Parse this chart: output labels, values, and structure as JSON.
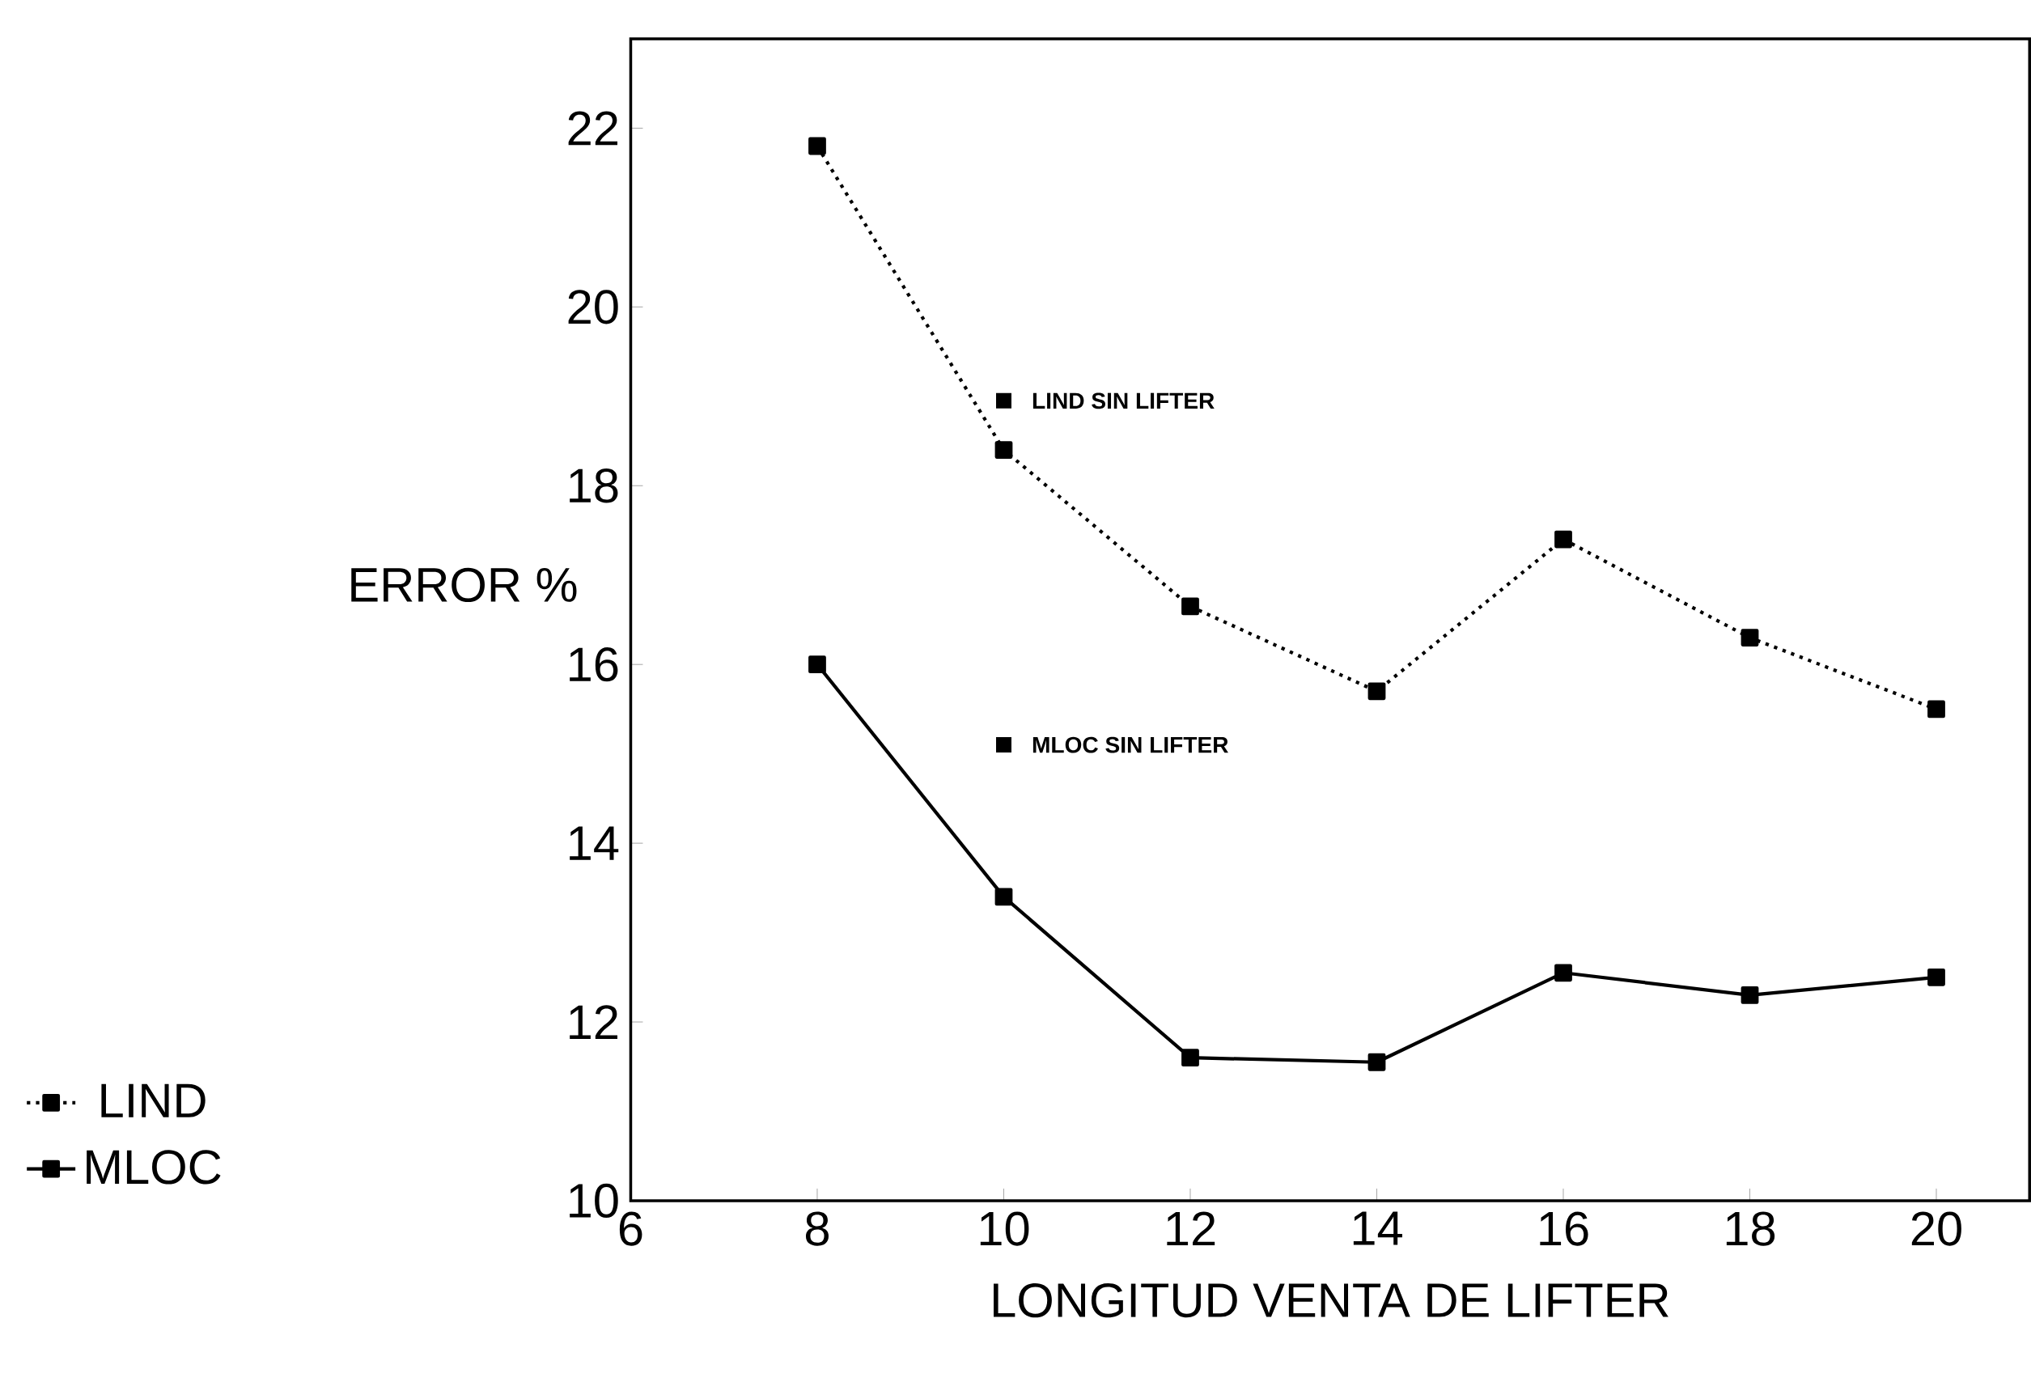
{
  "chart_data": {
    "type": "line",
    "xlabel": "LONGITUD VENTA DE LIFTER",
    "ylabel": "ERROR %",
    "x": [
      8,
      10,
      12,
      14,
      16,
      18,
      20
    ],
    "series": [
      {
        "name": "LIND",
        "color": "#000000",
        "line_style": "dotted",
        "values": [
          21.8,
          18.4,
          16.65,
          15.7,
          17.4,
          16.3,
          15.5
        ]
      },
      {
        "name": "MLOC",
        "color": "#000000",
        "line_style": "solid",
        "values": [
          16.0,
          13.4,
          11.6,
          11.55,
          12.55,
          12.3,
          12.5
        ]
      }
    ],
    "annotations": [
      {
        "text": "LIND SIN LIFTER",
        "x": 10,
        "y": 18.95
      },
      {
        "text": "MLOC SIN LIFTER",
        "x": 10,
        "y": 15.1
      }
    ],
    "xlim": [
      6,
      21
    ],
    "ylim": [
      10,
      23
    ],
    "xticks": [
      6,
      8,
      10,
      12,
      14,
      16,
      18,
      20
    ],
    "yticks": [
      10,
      12,
      14,
      16,
      18,
      20,
      22
    ],
    "marker": "square",
    "legend": "bottom left",
    "grid": false
  }
}
